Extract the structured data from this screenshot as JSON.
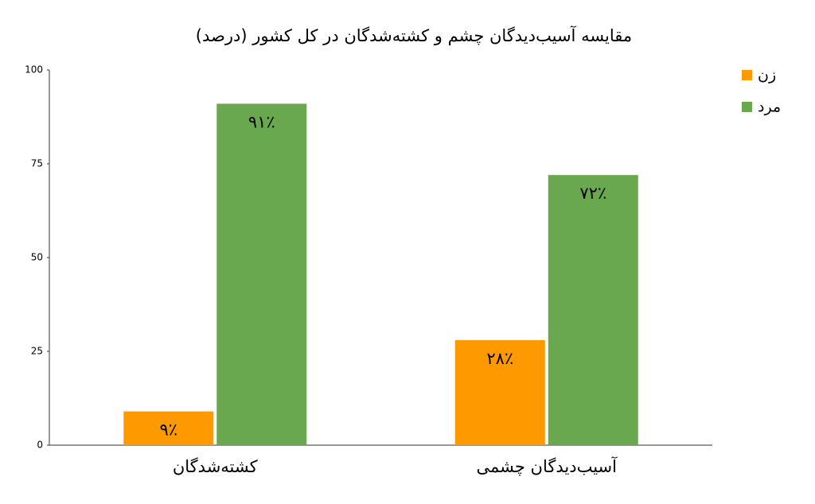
{
  "chart_data": {
    "type": "bar",
    "title": "مقایسه آسیب‌دیدگان چشم و کشته‌شدگان در کل کشور (درصد)",
    "categories": [
      "کشته‌شدگان",
      "آسیب‌دیدگان چشمی"
    ],
    "series": [
      {
        "name": "زن",
        "color": "#ff9900",
        "values": [
          9,
          28
        ],
        "value_labels": [
          "۹٪",
          "۲۸٪"
        ]
      },
      {
        "name": "مرد",
        "color": "#6aa84f",
        "values": [
          91,
          72
        ],
        "value_labels": [
          "۹۱٪",
          "۷۲٪"
        ]
      }
    ],
    "ylim": [
      0,
      100
    ],
    "yticks": [
      0,
      25,
      50,
      75,
      100
    ],
    "grid": false,
    "legend": "right"
  }
}
